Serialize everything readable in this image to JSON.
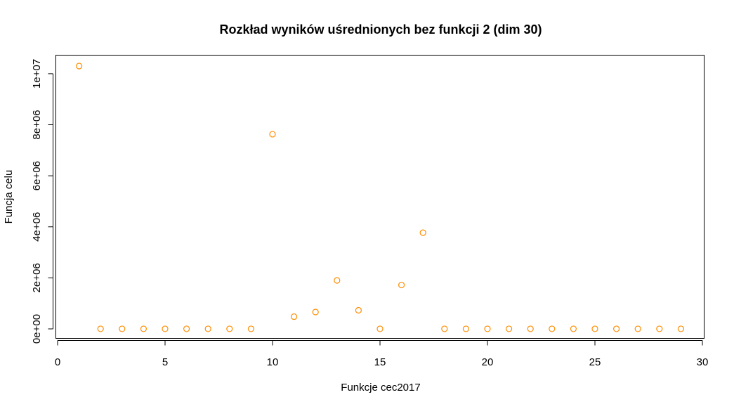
{
  "chart_data": {
    "type": "scatter",
    "title": "Rozkład wyników uśrednionych bez funkcji 2 (dim 30)",
    "xlabel": "Funkcje cec2017",
    "ylabel": "Funcja celu",
    "xlim": [
      0,
      30
    ],
    "ylim": [
      0,
      10300000
    ],
    "x_ticks": [
      0,
      5,
      10,
      15,
      20,
      25,
      30
    ],
    "x_tick_labels": [
      "0",
      "5",
      "10",
      "15",
      "20",
      "25",
      "30"
    ],
    "y_ticks": [
      0,
      2000000,
      4000000,
      6000000,
      8000000,
      10000000
    ],
    "y_tick_labels": [
      "0e+00",
      "2e+06",
      "4e+06",
      "6e+06",
      "8e+06",
      "1e+07"
    ],
    "grid": false,
    "point_color": "#ff8c00",
    "series": [
      {
        "x": [
          1,
          2,
          3,
          4,
          5,
          6,
          7,
          8,
          9,
          10,
          11,
          12,
          13,
          14,
          15,
          16,
          17,
          18,
          19,
          20,
          21,
          22,
          23,
          24,
          25,
          26,
          27,
          28,
          29
        ],
        "y": [
          10300000,
          2000,
          2000,
          2000,
          2000,
          2000,
          2000,
          2000,
          2000,
          7630000,
          480000,
          660000,
          1900000,
          730000,
          2000,
          1720000,
          3770000,
          2000,
          2000,
          2000,
          2000,
          2000,
          2000,
          2000,
          2000,
          2000,
          2000,
          2000,
          2000
        ]
      }
    ]
  }
}
